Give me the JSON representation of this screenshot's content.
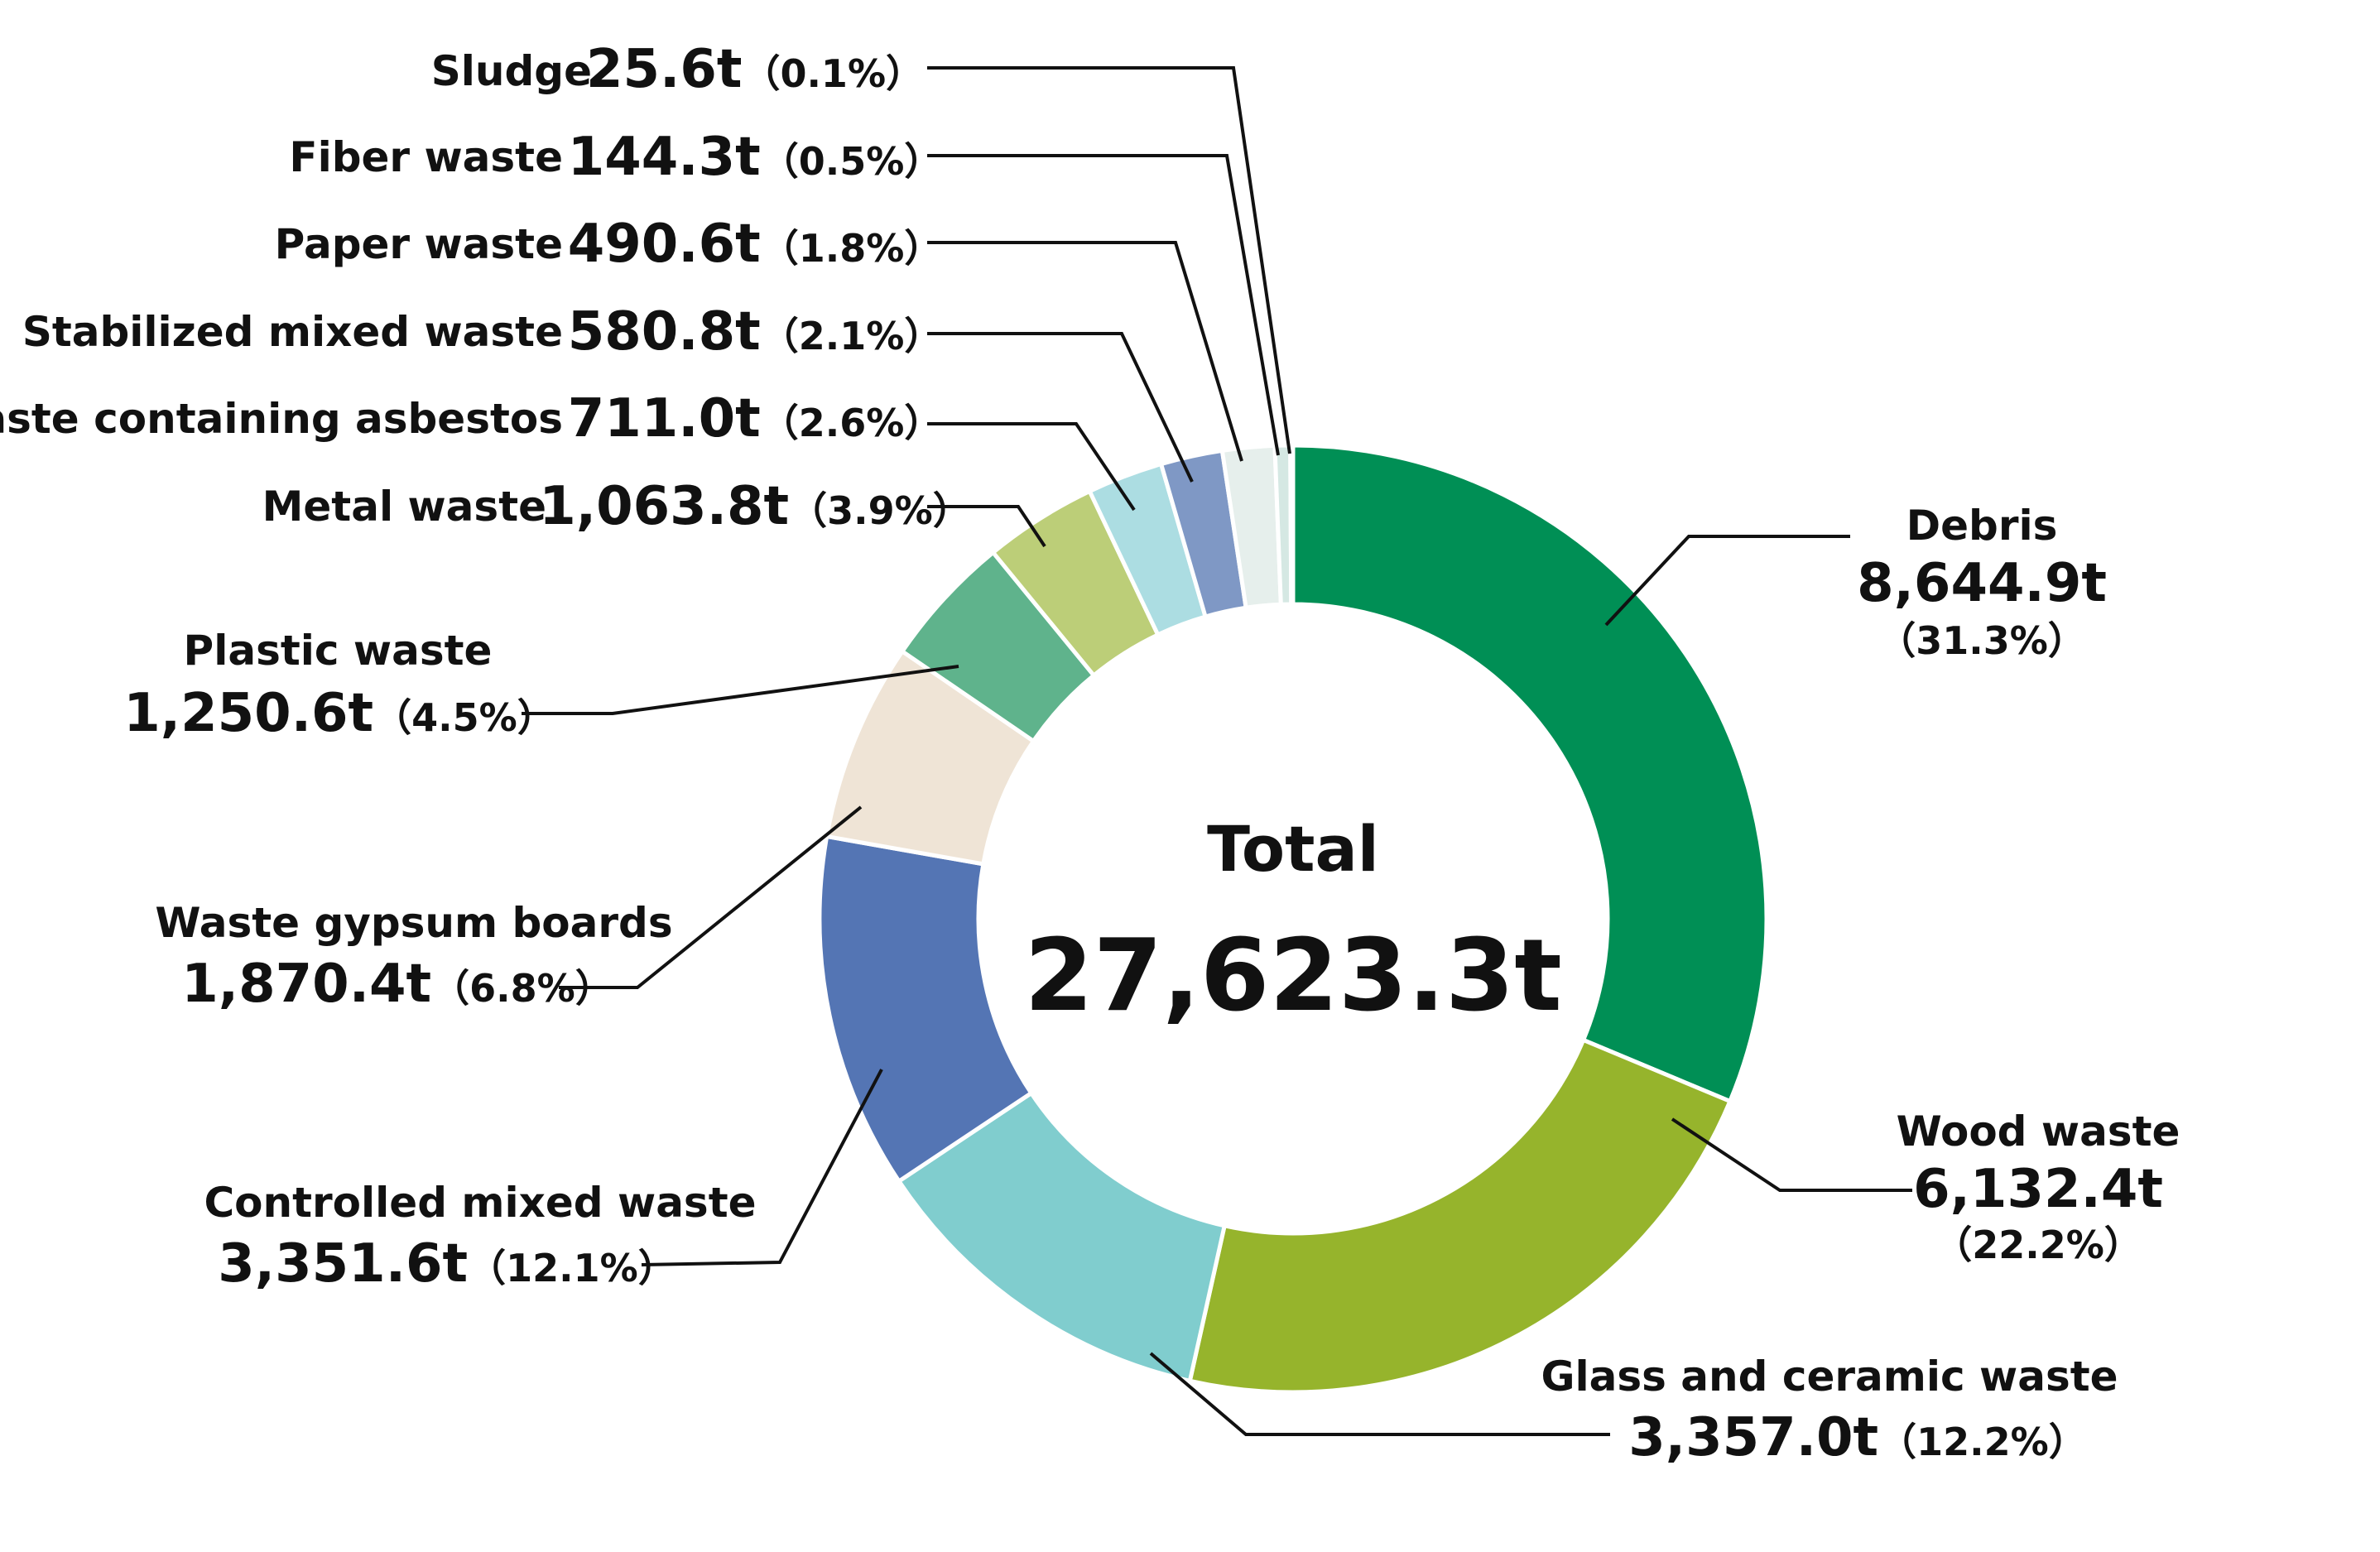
{
  "chart_data": {
    "type": "pie",
    "donut": true,
    "center": {
      "title": "Total",
      "total": "27,623.3t"
    },
    "unit": "t",
    "slices": [
      {
        "name": "Debris",
        "value": 8644.9,
        "value_label": "8,644.9t",
        "percent_label": "（31.3%）",
        "color": "#008f55"
      },
      {
        "name": "Wood waste",
        "value": 6132.4,
        "value_label": "6,132.4t",
        "percent_label": "（22.2%）",
        "color": "#96b42c"
      },
      {
        "name": "Glass and ceramic waste",
        "value": 3357.0,
        "value_label": "3,357.0t",
        "percent_label": "（12.2%）",
        "color": "#80cdce"
      },
      {
        "name": "Controlled mixed waste",
        "value": 3351.6,
        "value_label": "3,351.6t",
        "percent_label": "（12.1%）",
        "color": "#5475b4"
      },
      {
        "name": "Waste gypsum boards",
        "value": 1870.4,
        "value_label": "1,870.4t",
        "percent_label": "（6.8%）",
        "color": "#efe4d6"
      },
      {
        "name": "Plastic waste",
        "value": 1250.6,
        "value_label": "1,250.6t",
        "percent_label": "（4.5%）",
        "color": "#5fb38c"
      },
      {
        "name": "Metal waste",
        "value": 1063.8,
        "value_label": "1,063.8t",
        "percent_label": "（3.9%）",
        "color": "#bcce78"
      },
      {
        "name": "Waste containing asbestos",
        "value": 711.0,
        "value_label": "711.0t",
        "percent_label": "（2.6%）",
        "color": "#acdde2"
      },
      {
        "name": "Stabilized mixed waste",
        "value": 580.8,
        "value_label": "580.8t",
        "percent_label": "（2.1%）",
        "color": "#7f98c5"
      },
      {
        "name": "Paper waste",
        "value": 490.6,
        "value_label": "490.6t",
        "percent_label": "（1.8%）",
        "color": "#e6efec"
      },
      {
        "name": "Fiber waste",
        "value": 144.3,
        "value_label": "144.3t",
        "percent_label": "（0.5%）",
        "color": "#d5e8e3"
      },
      {
        "name": "Sludge",
        "value": 25.6,
        "value_label": "25.6t",
        "percent_label": "（0.1%）",
        "color": "#b7dccf"
      }
    ]
  }
}
